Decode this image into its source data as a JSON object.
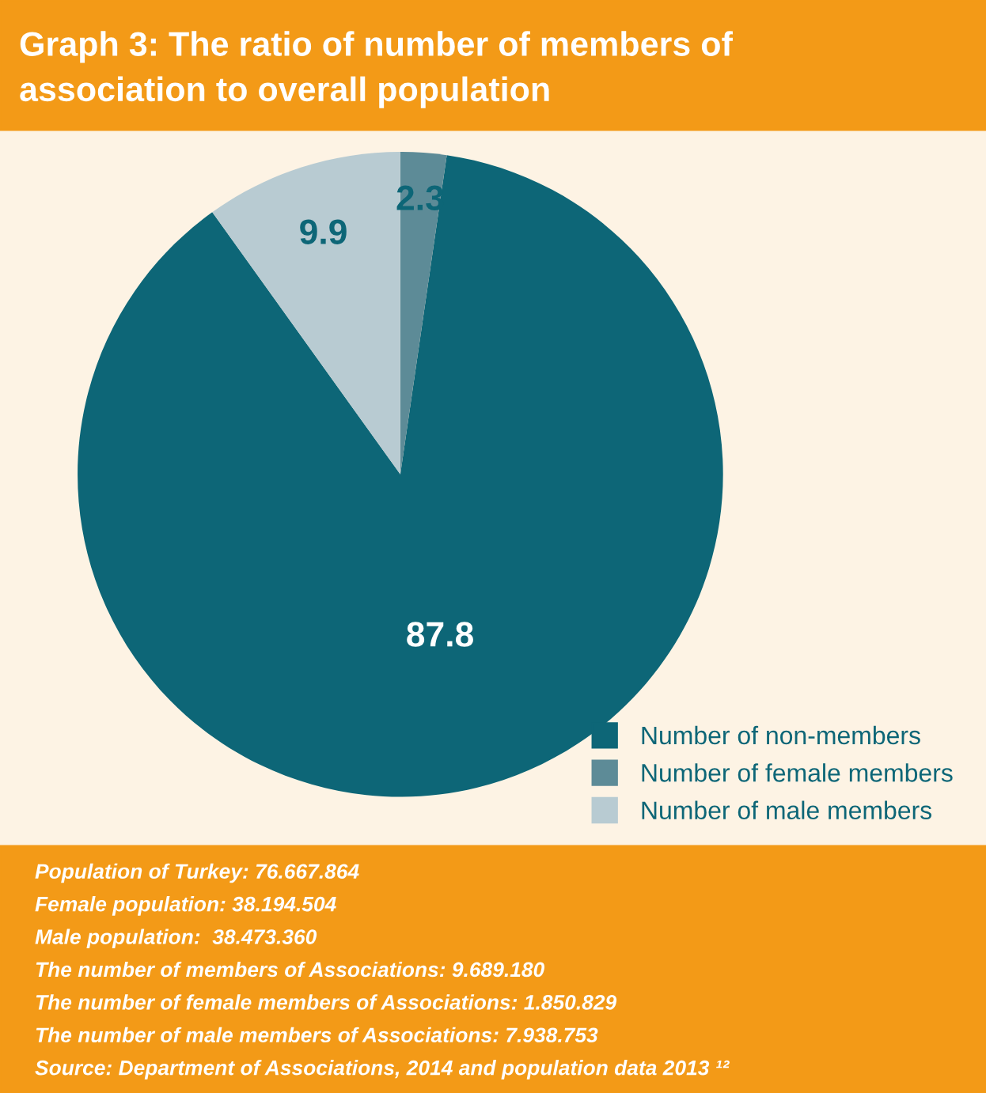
{
  "chart_data": {
    "type": "pie",
    "title": "Graph 3: The ratio of number of members of\nassociation to overall population",
    "categories": [
      "Number of non-members",
      "Number of female members",
      "Number of male members"
    ],
    "values": [
      87.8,
      2.3,
      9.9
    ],
    "colors": [
      "#0d6677",
      "#5d8b97",
      "#b8cbd2"
    ],
    "data_labels": true,
    "legend": "bottom right",
    "annotations": [
      "Population of Turkey: 76.667.864",
      "Female population: 38.194.504",
      "Male population:  38.473.360",
      "The number of members of Associations: 9.689.180",
      "The number of female members of Associations: 1.850.829",
      "The number of male members of Associations: 7.938.753",
      "Source: Department of Associations, 2014 and population data 2013 ¹²"
    ]
  }
}
